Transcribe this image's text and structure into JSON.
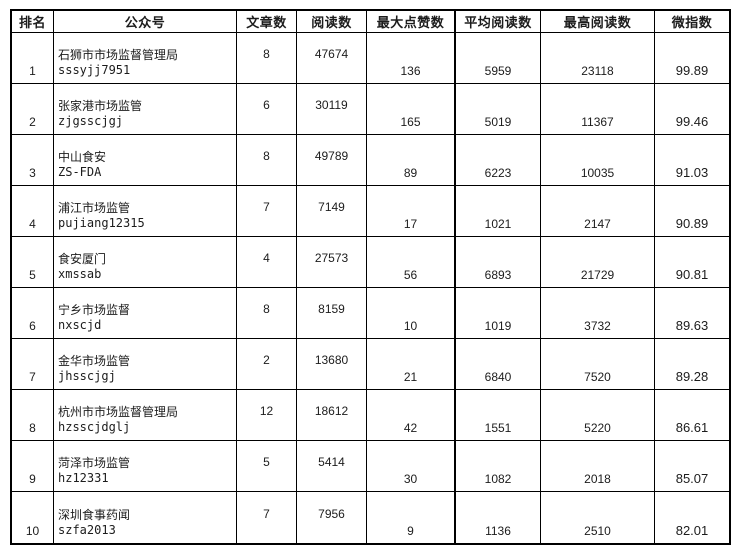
{
  "table": {
    "headers": [
      {
        "key": "rank",
        "label": "排名"
      },
      {
        "key": "account",
        "label": "公众号"
      },
      {
        "key": "articles",
        "label": "文章数"
      },
      {
        "key": "reads",
        "label": "阅读数"
      },
      {
        "key": "max_likes",
        "label": "最大点赞数"
      },
      {
        "key": "avg_reads",
        "label": "平均阅读数"
      },
      {
        "key": "top_reads",
        "label": "最高阅读数"
      },
      {
        "key": "wci",
        "label": "微指数"
      }
    ],
    "rows": [
      {
        "rank": "1",
        "name": "石狮市市场监督管理局",
        "account_id": "sssyjj7951",
        "articles": "8",
        "reads": "47674",
        "max_likes": "136",
        "avg_reads": "5959",
        "top_reads": "23118",
        "wci": "99.89"
      },
      {
        "rank": "2",
        "name": "张家港市场监管",
        "account_id": "zjgsscjgj",
        "articles": "6",
        "reads": "30119",
        "max_likes": "165",
        "avg_reads": "5019",
        "top_reads": "11367",
        "wci": "99.46"
      },
      {
        "rank": "3",
        "name": "中山食安",
        "account_id": "ZS-FDA",
        "articles": "8",
        "reads": "49789",
        "max_likes": "89",
        "avg_reads": "6223",
        "top_reads": "10035",
        "wci": "91.03"
      },
      {
        "rank": "4",
        "name": "浦江市场监管",
        "account_id": "pujiang12315",
        "articles": "7",
        "reads": "7149",
        "max_likes": "17",
        "avg_reads": "1021",
        "top_reads": "2147",
        "wci": "90.89"
      },
      {
        "rank": "5",
        "name": "食安厦门",
        "account_id": "xmssab",
        "articles": "4",
        "reads": "27573",
        "max_likes": "56",
        "avg_reads": "6893",
        "top_reads": "21729",
        "wci": "90.81"
      },
      {
        "rank": "6",
        "name": "宁乡市场监督",
        "account_id": "nxscjd",
        "articles": "8",
        "reads": "8159",
        "max_likes": "10",
        "avg_reads": "1019",
        "top_reads": "3732",
        "wci": "89.63"
      },
      {
        "rank": "7",
        "name": "金华市场监管",
        "account_id": "jhsscjgj",
        "articles": "2",
        "reads": "13680",
        "max_likes": "21",
        "avg_reads": "6840",
        "top_reads": "7520",
        "wci": "89.28"
      },
      {
        "rank": "8",
        "name": "杭州市市场监督管理局",
        "account_id": "hzsscjdglj",
        "articles": "12",
        "reads": "18612",
        "max_likes": "42",
        "avg_reads": "1551",
        "top_reads": "5220",
        "wci": "86.61"
      },
      {
        "rank": "9",
        "name": "菏泽市场监管",
        "account_id": "hz12331",
        "articles": "5",
        "reads": "5414",
        "max_likes": "30",
        "avg_reads": "1082",
        "top_reads": "2018",
        "wci": "85.07"
      },
      {
        "rank": "10",
        "name": "深圳食事药闻",
        "account_id": "szfa2013",
        "articles": "7",
        "reads": "7956",
        "max_likes": "9",
        "avg_reads": "1136",
        "top_reads": "2510",
        "wci": "82.01"
      }
    ]
  },
  "colors": {
    "border": "#000000",
    "text": "#1c1c1c",
    "background": "#ffffff"
  }
}
